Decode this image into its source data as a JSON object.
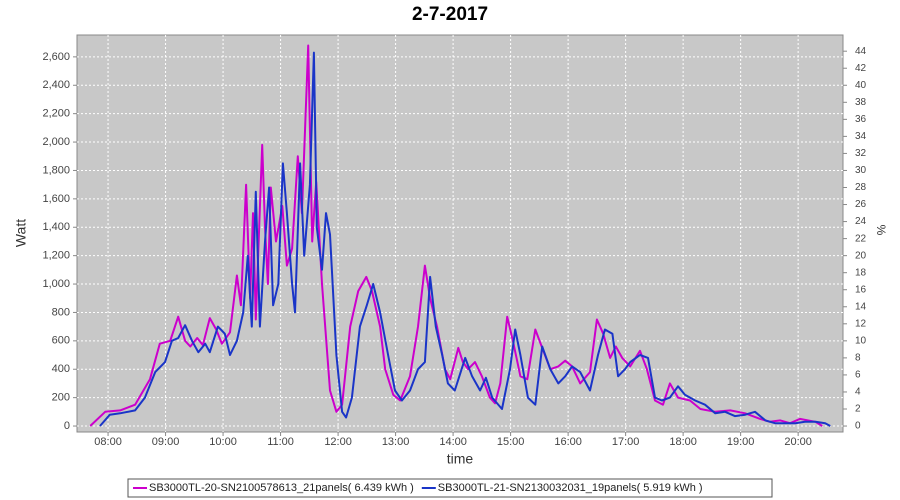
{
  "chart_data": {
    "type": "line",
    "title": "2-7-2017",
    "x_label": "time",
    "y_label": "Watt",
    "y2_label": "%",
    "xlim": [
      7.46,
      20.78
    ],
    "xticks": [
      {
        "value": 8,
        "label": "08:00"
      },
      {
        "value": 9,
        "label": "09:00"
      },
      {
        "value": 10,
        "label": "10:00"
      },
      {
        "value": 11,
        "label": "11:00"
      },
      {
        "value": 12,
        "label": "12:00"
      },
      {
        "value": 13,
        "label": "13:00"
      },
      {
        "value": 14,
        "label": "14:00"
      },
      {
        "value": 15,
        "label": "15:00"
      },
      {
        "value": 16,
        "label": "16:00"
      },
      {
        "value": 17,
        "label": "17:00"
      },
      {
        "value": 18,
        "label": "18:00"
      },
      {
        "value": 19,
        "label": "19:00"
      },
      {
        "value": 20,
        "label": "20:00"
      }
    ],
    "ylim": [
      -42,
      2754
    ],
    "yticks": [
      0,
      200,
      400,
      600,
      800,
      {
        "value": 1000,
        "label": "1,000"
      },
      {
        "value": 1200,
        "label": "1,200"
      },
      {
        "value": 1400,
        "label": "1,400"
      },
      {
        "value": 1600,
        "label": "1,600"
      },
      {
        "value": 1800,
        "label": "1,800"
      },
      {
        "value": 2000,
        "label": "2,000"
      },
      {
        "value": 2200,
        "label": "2,200"
      },
      {
        "value": 2400,
        "label": "2,400"
      },
      {
        "value": 2600,
        "label": "2,600"
      }
    ],
    "y2lim": [
      -0.7,
      45.9
    ],
    "y2ticks": [
      0,
      2,
      4,
      6,
      8,
      10,
      12,
      14,
      16,
      18,
      20,
      22,
      24,
      26,
      28,
      30,
      32,
      34,
      36,
      38,
      40,
      42,
      44
    ],
    "grid": true,
    "legend": "bottom",
    "series": [
      {
        "name": "SB3000TL-20-SN2100578613_21panels( 6.439 kWh )",
        "color": "#cc00cc",
        "x": [
          7.69,
          7.95,
          8.21,
          8.47,
          8.73,
          8.9,
          9.08,
          9.22,
          9.34,
          9.43,
          9.55,
          9.65,
          9.77,
          9.88,
          9.98,
          10.12,
          10.24,
          10.31,
          10.4,
          10.47,
          10.52,
          10.57,
          10.68,
          10.73,
          10.78,
          10.83,
          10.92,
          11.03,
          11.11,
          11.2,
          11.3,
          11.37,
          11.48,
          11.55,
          11.62,
          11.72,
          11.86,
          11.97,
          12.07,
          12.21,
          12.35,
          12.49,
          12.59,
          12.73,
          12.82,
          12.96,
          13.08,
          13.25,
          13.39,
          13.51,
          13.6,
          13.72,
          13.86,
          13.95,
          14.09,
          14.17,
          14.26,
          14.38,
          14.5,
          14.64,
          14.73,
          14.82,
          14.94,
          15.04,
          15.17,
          15.29,
          15.43,
          15.55,
          15.69,
          15.83,
          15.95,
          16.07,
          16.21,
          16.38,
          16.5,
          16.61,
          16.73,
          16.83,
          16.94,
          17.08,
          17.25,
          17.37,
          17.51,
          17.65,
          17.77,
          17.91,
          18.12,
          18.3,
          18.56,
          18.82,
          19.08,
          19.34,
          19.51,
          19.69,
          19.86,
          20.03,
          20.3,
          20.42
        ],
        "values": [
          0,
          100,
          110,
          150,
          330,
          580,
          600,
          770,
          600,
          560,
          620,
          570,
          760,
          680,
          580,
          660,
          1060,
          850,
          1700,
          900,
          1500,
          750,
          1980,
          1400,
          1000,
          1680,
          1300,
          1550,
          1130,
          1250,
          1900,
          1500,
          2680,
          1300,
          1720,
          1000,
          250,
          100,
          150,
          700,
          950,
          1050,
          950,
          700,
          400,
          220,
          180,
          350,
          700,
          1130,
          900,
          700,
          400,
          330,
          550,
          450,
          400,
          450,
          350,
          200,
          160,
          300,
          770,
          600,
          350,
          330,
          680,
          550,
          400,
          420,
          460,
          420,
          300,
          380,
          750,
          650,
          480,
          560,
          480,
          420,
          530,
          400,
          180,
          150,
          300,
          200,
          180,
          120,
          100,
          110,
          90,
          50,
          30,
          40,
          20,
          50,
          30,
          0
        ]
      },
      {
        "name": "SB3000TL-21-SN2130032031_19panels( 5.919 kWh )",
        "color": "#1a35c8",
        "x": [
          7.86,
          8.03,
          8.21,
          8.47,
          8.64,
          8.82,
          8.99,
          9.11,
          9.22,
          9.34,
          9.46,
          9.57,
          9.69,
          9.77,
          9.91,
          10.03,
          10.12,
          10.24,
          10.35,
          10.43,
          10.5,
          10.57,
          10.64,
          10.73,
          10.8,
          10.87,
          10.96,
          11.04,
          11.11,
          11.2,
          11.25,
          11.34,
          11.41,
          11.51,
          11.58,
          11.63,
          11.72,
          11.79,
          11.86,
          11.97,
          12.07,
          12.14,
          12.24,
          12.38,
          12.5,
          12.61,
          12.73,
          12.87,
          12.99,
          13.11,
          13.25,
          13.39,
          13.51,
          13.6,
          13.7,
          13.81,
          13.91,
          14.03,
          14.21,
          14.33,
          14.47,
          14.57,
          14.68,
          14.85,
          14.99,
          15.08,
          15.17,
          15.3,
          15.43,
          15.55,
          15.69,
          15.83,
          15.95,
          16.07,
          16.21,
          16.38,
          16.52,
          16.64,
          16.77,
          16.87,
          16.99,
          17.08,
          17.25,
          17.39,
          17.51,
          17.63,
          17.77,
          17.91,
          18.03,
          18.21,
          18.38,
          18.56,
          18.73,
          18.9,
          19.08,
          19.25,
          19.43,
          19.6,
          19.77,
          19.95,
          20.12,
          20.3,
          20.47,
          20.56
        ],
        "values": [
          0,
          80,
          90,
          110,
          200,
          380,
          450,
          600,
          620,
          710,
          600,
          520,
          580,
          520,
          700,
          650,
          500,
          600,
          800,
          1200,
          700,
          1650,
          700,
          1300,
          1680,
          850,
          1000,
          1850,
          1500,
          1000,
          800,
          1850,
          1200,
          1700,
          2630,
          1400,
          1100,
          1500,
          1350,
          500,
          100,
          60,
          200,
          700,
          850,
          1000,
          800,
          500,
          250,
          180,
          250,
          400,
          450,
          1050,
          700,
          500,
          300,
          250,
          480,
          350,
          250,
          340,
          200,
          120,
          400,
          680,
          500,
          200,
          150,
          560,
          400,
          300,
          350,
          420,
          380,
          250,
          500,
          680,
          650,
          350,
          400,
          450,
          500,
          480,
          200,
          180,
          200,
          280,
          220,
          180,
          150,
          90,
          100,
          70,
          80,
          100,
          40,
          20,
          20,
          20,
          30,
          30,
          20,
          0
        ]
      }
    ]
  }
}
